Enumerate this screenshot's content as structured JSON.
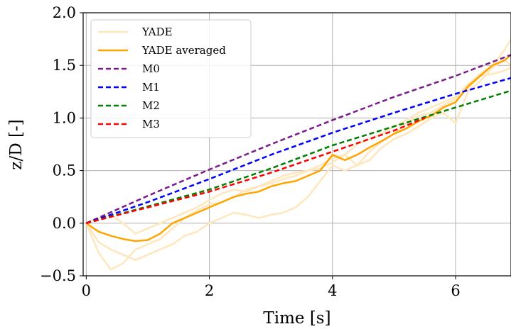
{
  "chart_data": {
    "type": "line",
    "title": "",
    "xlabel": "Time [s]",
    "ylabel": "z/D [-]",
    "xlim": [
      -0.05,
      6.9
    ],
    "ylim": [
      -0.5,
      2.0
    ],
    "xticks": [
      0,
      2,
      4,
      6
    ],
    "yticks": [
      -0.5,
      0.0,
      0.5,
      1.0,
      1.5,
      2.0
    ],
    "xtick_labels": [
      "0",
      "2",
      "4",
      "6"
    ],
    "ytick_labels": [
      "−0.5",
      "0.0",
      "0.5",
      "1.0",
      "1.5",
      "2.0"
    ],
    "grid": true,
    "legend_position": "upper-left",
    "series": [
      {
        "name": "YADE",
        "color": "#ffe7bd",
        "style": "solid",
        "width": 2.5,
        "x": [
          0,
          0.2,
          0.4,
          0.6,
          0.8,
          1.0,
          1.2,
          1.4,
          1.6,
          1.8,
          2.0,
          2.2,
          2.4,
          2.6,
          2.8,
          3.0,
          3.2,
          3.4,
          3.6,
          3.8,
          4.0,
          4.2,
          4.4,
          4.6,
          4.8,
          5.0,
          5.2,
          5.4,
          5.6,
          5.8,
          6.0,
          6.2,
          6.4,
          6.6,
          6.8,
          6.9
        ],
        "y": [
          0,
          -0.28,
          -0.44,
          -0.38,
          -0.25,
          -0.2,
          -0.15,
          -0.05,
          0.05,
          0.12,
          0.18,
          0.2,
          0.25,
          0.32,
          0.35,
          0.38,
          0.42,
          0.45,
          0.5,
          0.55,
          0.62,
          0.65,
          0.75,
          0.8,
          0.85,
          0.92,
          0.98,
          1.05,
          1.1,
          1.15,
          1.2,
          1.32,
          1.42,
          1.5,
          1.65,
          1.75
        ]
      },
      {
        "name": "",
        "color": "#ffe7bd",
        "style": "solid",
        "width": 2.5,
        "x": [
          0,
          0.2,
          0.4,
          0.6,
          0.8,
          1.0,
          1.2,
          1.4,
          1.6,
          1.8,
          2.0,
          2.2,
          2.4,
          2.6,
          2.8,
          3.0,
          3.2,
          3.4,
          3.6,
          3.8,
          4.0,
          4.2,
          4.4,
          4.6,
          4.8,
          5.0,
          5.2,
          5.4,
          5.6,
          5.8,
          6.0,
          6.2,
          6.4,
          6.6,
          6.8,
          6.9
        ],
        "y": [
          0,
          -0.18,
          -0.25,
          -0.3,
          -0.35,
          -0.3,
          -0.25,
          -0.2,
          -0.12,
          -0.08,
          0.0,
          0.05,
          0.1,
          0.08,
          0.05,
          0.08,
          0.1,
          0.15,
          0.25,
          0.4,
          0.55,
          0.5,
          0.55,
          0.6,
          0.72,
          0.8,
          0.85,
          0.92,
          1.0,
          1.05,
          0.95,
          1.25,
          1.35,
          1.48,
          1.55,
          1.5
        ]
      },
      {
        "name": "",
        "color": "#ffe7bd",
        "style": "solid",
        "width": 2.5,
        "x": [
          0,
          0.2,
          0.4,
          0.6,
          0.8,
          1.0,
          1.2,
          1.4,
          1.6,
          1.8,
          2.0,
          2.2,
          2.4,
          2.6,
          2.8,
          3.0,
          3.2,
          3.4,
          3.6,
          3.8,
          4.0,
          4.2,
          4.4,
          4.6,
          4.8,
          5.0,
          5.2,
          5.4,
          5.6,
          5.8,
          6.0,
          6.2,
          6.4,
          6.6,
          6.8,
          6.9
        ],
        "y": [
          0,
          0.05,
          0.08,
          0.0,
          -0.1,
          -0.05,
          0.0,
          0.05,
          0.1,
          0.15,
          0.22,
          0.28,
          0.32,
          0.3,
          0.35,
          0.4,
          0.45,
          0.48,
          0.5,
          0.52,
          0.58,
          0.65,
          0.55,
          0.68,
          0.78,
          0.85,
          0.95,
          1.02,
          1.05,
          1.12,
          1.18,
          1.28,
          1.4,
          1.42,
          1.45,
          1.48
        ]
      },
      {
        "name": "YADE averaged",
        "color": "#ffa500",
        "style": "solid",
        "width": 2.5,
        "x": [
          0,
          0.2,
          0.4,
          0.6,
          0.8,
          1.0,
          1.2,
          1.4,
          1.6,
          1.8,
          2.0,
          2.2,
          2.4,
          2.6,
          2.8,
          3.0,
          3.2,
          3.4,
          3.6,
          3.8,
          4.0,
          4.2,
          4.4,
          4.6,
          4.8,
          5.0,
          5.2,
          5.4,
          5.6,
          5.8,
          6.0,
          6.2,
          6.4,
          6.6,
          6.8,
          6.9
        ],
        "y": [
          0,
          -0.08,
          -0.12,
          -0.15,
          -0.17,
          -0.16,
          -0.1,
          0.0,
          0.05,
          0.1,
          0.15,
          0.2,
          0.25,
          0.28,
          0.3,
          0.35,
          0.38,
          0.4,
          0.45,
          0.5,
          0.65,
          0.6,
          0.65,
          0.72,
          0.78,
          0.85,
          0.9,
          0.97,
          1.02,
          1.1,
          1.15,
          1.3,
          1.4,
          1.5,
          1.55,
          1.6
        ]
      },
      {
        "name": "M0",
        "color": "#7b1c8c",
        "style": "dashed",
        "width": 2.5,
        "x": [
          0,
          1,
          2,
          3,
          4,
          5,
          6,
          6.9
        ],
        "y": [
          0,
          0.26,
          0.51,
          0.75,
          0.98,
          1.2,
          1.4,
          1.6
        ]
      },
      {
        "name": "M1",
        "color": "#0000ff",
        "style": "dashed",
        "width": 2.5,
        "x": [
          0,
          1,
          2,
          3,
          4,
          5,
          6,
          6.9
        ],
        "y": [
          0,
          0.2,
          0.42,
          0.65,
          0.86,
          1.05,
          1.23,
          1.38
        ]
      },
      {
        "name": "M2",
        "color": "#008000",
        "style": "dashed",
        "width": 2.5,
        "x": [
          0,
          1,
          2,
          3,
          4,
          5,
          6,
          6.9
        ],
        "y": [
          0,
          0.16,
          0.32,
          0.52,
          0.74,
          0.92,
          1.1,
          1.26
        ]
      },
      {
        "name": "M3",
        "color": "#ff0000",
        "style": "dashed",
        "width": 2.5,
        "x": [
          0,
          1,
          2,
          3,
          4,
          5,
          5.5
        ],
        "y": [
          0,
          0.15,
          0.3,
          0.48,
          0.68,
          0.88,
          1.0
        ]
      }
    ]
  }
}
